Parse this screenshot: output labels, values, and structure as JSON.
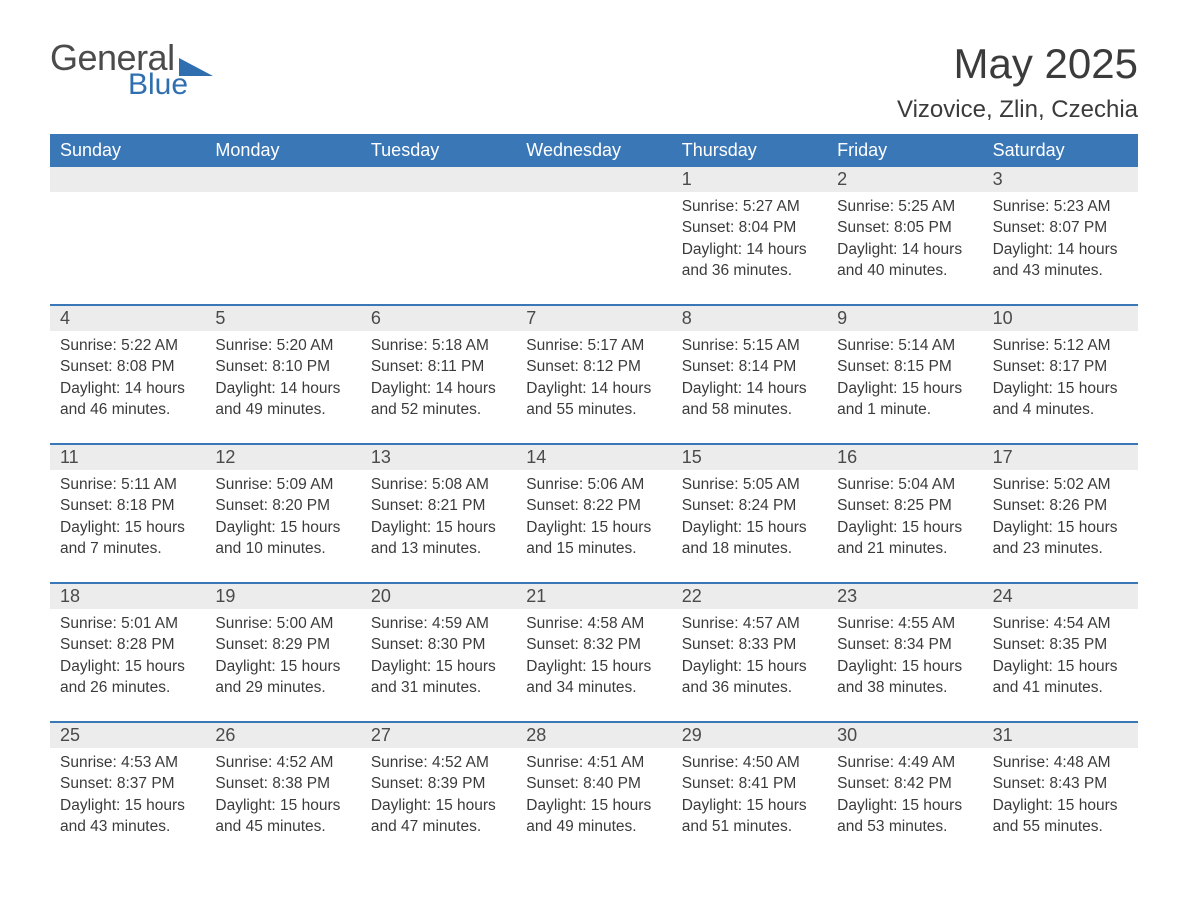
{
  "logo": {
    "text1": "General",
    "text2": "Blue",
    "triangle_color": "#2f6fb0"
  },
  "title": "May 2025",
  "location": "Vizovice, Zlin, Czechia",
  "colors": {
    "header_bg": "#3a77b7",
    "header_text": "#ffffff",
    "daynum_bg": "#ececec",
    "row_border": "#3a77b7",
    "body_text": "#3b3b3b",
    "page_bg": "#ffffff"
  },
  "day_headers": [
    "Sunday",
    "Monday",
    "Tuesday",
    "Wednesday",
    "Thursday",
    "Friday",
    "Saturday"
  ],
  "weeks": [
    [
      {
        "n": "",
        "lines": []
      },
      {
        "n": "",
        "lines": []
      },
      {
        "n": "",
        "lines": []
      },
      {
        "n": "",
        "lines": []
      },
      {
        "n": "1",
        "lines": [
          "Sunrise: 5:27 AM",
          "Sunset: 8:04 PM",
          "Daylight: 14 hours",
          "and 36 minutes."
        ]
      },
      {
        "n": "2",
        "lines": [
          "Sunrise: 5:25 AM",
          "Sunset: 8:05 PM",
          "Daylight: 14 hours",
          "and 40 minutes."
        ]
      },
      {
        "n": "3",
        "lines": [
          "Sunrise: 5:23 AM",
          "Sunset: 8:07 PM",
          "Daylight: 14 hours",
          "and 43 minutes."
        ]
      }
    ],
    [
      {
        "n": "4",
        "lines": [
          "Sunrise: 5:22 AM",
          "Sunset: 8:08 PM",
          "Daylight: 14 hours",
          "and 46 minutes."
        ]
      },
      {
        "n": "5",
        "lines": [
          "Sunrise: 5:20 AM",
          "Sunset: 8:10 PM",
          "Daylight: 14 hours",
          "and 49 minutes."
        ]
      },
      {
        "n": "6",
        "lines": [
          "Sunrise: 5:18 AM",
          "Sunset: 8:11 PM",
          "Daylight: 14 hours",
          "and 52 minutes."
        ]
      },
      {
        "n": "7",
        "lines": [
          "Sunrise: 5:17 AM",
          "Sunset: 8:12 PM",
          "Daylight: 14 hours",
          "and 55 minutes."
        ]
      },
      {
        "n": "8",
        "lines": [
          "Sunrise: 5:15 AM",
          "Sunset: 8:14 PM",
          "Daylight: 14 hours",
          "and 58 minutes."
        ]
      },
      {
        "n": "9",
        "lines": [
          "Sunrise: 5:14 AM",
          "Sunset: 8:15 PM",
          "Daylight: 15 hours",
          "and 1 minute."
        ]
      },
      {
        "n": "10",
        "lines": [
          "Sunrise: 5:12 AM",
          "Sunset: 8:17 PM",
          "Daylight: 15 hours",
          "and 4 minutes."
        ]
      }
    ],
    [
      {
        "n": "11",
        "lines": [
          "Sunrise: 5:11 AM",
          "Sunset: 8:18 PM",
          "Daylight: 15 hours",
          "and 7 minutes."
        ]
      },
      {
        "n": "12",
        "lines": [
          "Sunrise: 5:09 AM",
          "Sunset: 8:20 PM",
          "Daylight: 15 hours",
          "and 10 minutes."
        ]
      },
      {
        "n": "13",
        "lines": [
          "Sunrise: 5:08 AM",
          "Sunset: 8:21 PM",
          "Daylight: 15 hours",
          "and 13 minutes."
        ]
      },
      {
        "n": "14",
        "lines": [
          "Sunrise: 5:06 AM",
          "Sunset: 8:22 PM",
          "Daylight: 15 hours",
          "and 15 minutes."
        ]
      },
      {
        "n": "15",
        "lines": [
          "Sunrise: 5:05 AM",
          "Sunset: 8:24 PM",
          "Daylight: 15 hours",
          "and 18 minutes."
        ]
      },
      {
        "n": "16",
        "lines": [
          "Sunrise: 5:04 AM",
          "Sunset: 8:25 PM",
          "Daylight: 15 hours",
          "and 21 minutes."
        ]
      },
      {
        "n": "17",
        "lines": [
          "Sunrise: 5:02 AM",
          "Sunset: 8:26 PM",
          "Daylight: 15 hours",
          "and 23 minutes."
        ]
      }
    ],
    [
      {
        "n": "18",
        "lines": [
          "Sunrise: 5:01 AM",
          "Sunset: 8:28 PM",
          "Daylight: 15 hours",
          "and 26 minutes."
        ]
      },
      {
        "n": "19",
        "lines": [
          "Sunrise: 5:00 AM",
          "Sunset: 8:29 PM",
          "Daylight: 15 hours",
          "and 29 minutes."
        ]
      },
      {
        "n": "20",
        "lines": [
          "Sunrise: 4:59 AM",
          "Sunset: 8:30 PM",
          "Daylight: 15 hours",
          "and 31 minutes."
        ]
      },
      {
        "n": "21",
        "lines": [
          "Sunrise: 4:58 AM",
          "Sunset: 8:32 PM",
          "Daylight: 15 hours",
          "and 34 minutes."
        ]
      },
      {
        "n": "22",
        "lines": [
          "Sunrise: 4:57 AM",
          "Sunset: 8:33 PM",
          "Daylight: 15 hours",
          "and 36 minutes."
        ]
      },
      {
        "n": "23",
        "lines": [
          "Sunrise: 4:55 AM",
          "Sunset: 8:34 PM",
          "Daylight: 15 hours",
          "and 38 minutes."
        ]
      },
      {
        "n": "24",
        "lines": [
          "Sunrise: 4:54 AM",
          "Sunset: 8:35 PM",
          "Daylight: 15 hours",
          "and 41 minutes."
        ]
      }
    ],
    [
      {
        "n": "25",
        "lines": [
          "Sunrise: 4:53 AM",
          "Sunset: 8:37 PM",
          "Daylight: 15 hours",
          "and 43 minutes."
        ]
      },
      {
        "n": "26",
        "lines": [
          "Sunrise: 4:52 AM",
          "Sunset: 8:38 PM",
          "Daylight: 15 hours",
          "and 45 minutes."
        ]
      },
      {
        "n": "27",
        "lines": [
          "Sunrise: 4:52 AM",
          "Sunset: 8:39 PM",
          "Daylight: 15 hours",
          "and 47 minutes."
        ]
      },
      {
        "n": "28",
        "lines": [
          "Sunrise: 4:51 AM",
          "Sunset: 8:40 PM",
          "Daylight: 15 hours",
          "and 49 minutes."
        ]
      },
      {
        "n": "29",
        "lines": [
          "Sunrise: 4:50 AM",
          "Sunset: 8:41 PM",
          "Daylight: 15 hours",
          "and 51 minutes."
        ]
      },
      {
        "n": "30",
        "lines": [
          "Sunrise: 4:49 AM",
          "Sunset: 8:42 PM",
          "Daylight: 15 hours",
          "and 53 minutes."
        ]
      },
      {
        "n": "31",
        "lines": [
          "Sunrise: 4:48 AM",
          "Sunset: 8:43 PM",
          "Daylight: 15 hours",
          "and 55 minutes."
        ]
      }
    ]
  ]
}
